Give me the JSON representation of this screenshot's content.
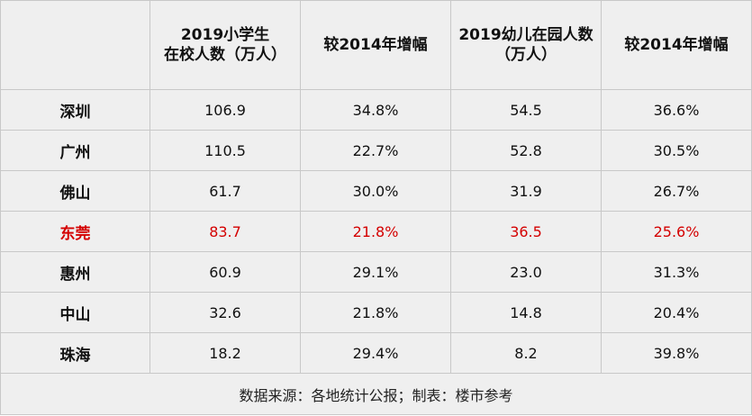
{
  "table": {
    "headers": [
      {
        "lines": [
          ""
        ]
      },
      {
        "lines": [
          "2019小学生",
          "在校人数（万人）"
        ]
      },
      {
        "lines": [
          "较2014年增幅"
        ]
      },
      {
        "lines": [
          "2019幼儿在园人数",
          "（万人）"
        ]
      },
      {
        "lines": [
          "较2014年增幅"
        ]
      }
    ],
    "rows": [
      {
        "city": "深圳",
        "primary": "106.9",
        "primary_growth": "34.8%",
        "kinder": "54.5",
        "kinder_growth": "36.6%",
        "highlight": false
      },
      {
        "city": "广州",
        "primary": "110.5",
        "primary_growth": "22.7%",
        "kinder": "52.8",
        "kinder_growth": "30.5%",
        "highlight": false
      },
      {
        "city": "佛山",
        "primary": "61.7",
        "primary_growth": "30.0%",
        "kinder": "31.9",
        "kinder_growth": "26.7%",
        "highlight": false
      },
      {
        "city": "东莞",
        "primary": "83.7",
        "primary_growth": "21.8%",
        "kinder": "36.5",
        "kinder_growth": "25.6%",
        "highlight": true
      },
      {
        "city": "惠州",
        "primary": "60.9",
        "primary_growth": "29.1%",
        "kinder": "23.0",
        "kinder_growth": "31.3%",
        "highlight": false
      },
      {
        "city": "中山",
        "primary": "32.6",
        "primary_growth": "21.8%",
        "kinder": "14.8",
        "kinder_growth": "20.4%",
        "highlight": false
      },
      {
        "city": "珠海",
        "primary": "18.2",
        "primary_growth": "29.4%",
        "kinder": "8.2",
        "kinder_growth": "39.8%",
        "highlight": false
      }
    ],
    "footer": "数据来源：各地统计公报；制表：楼市参考"
  },
  "colors": {
    "highlight_text": "#d40000",
    "cell_background": "#efefef",
    "grid_line": "#c8c8c8"
  }
}
